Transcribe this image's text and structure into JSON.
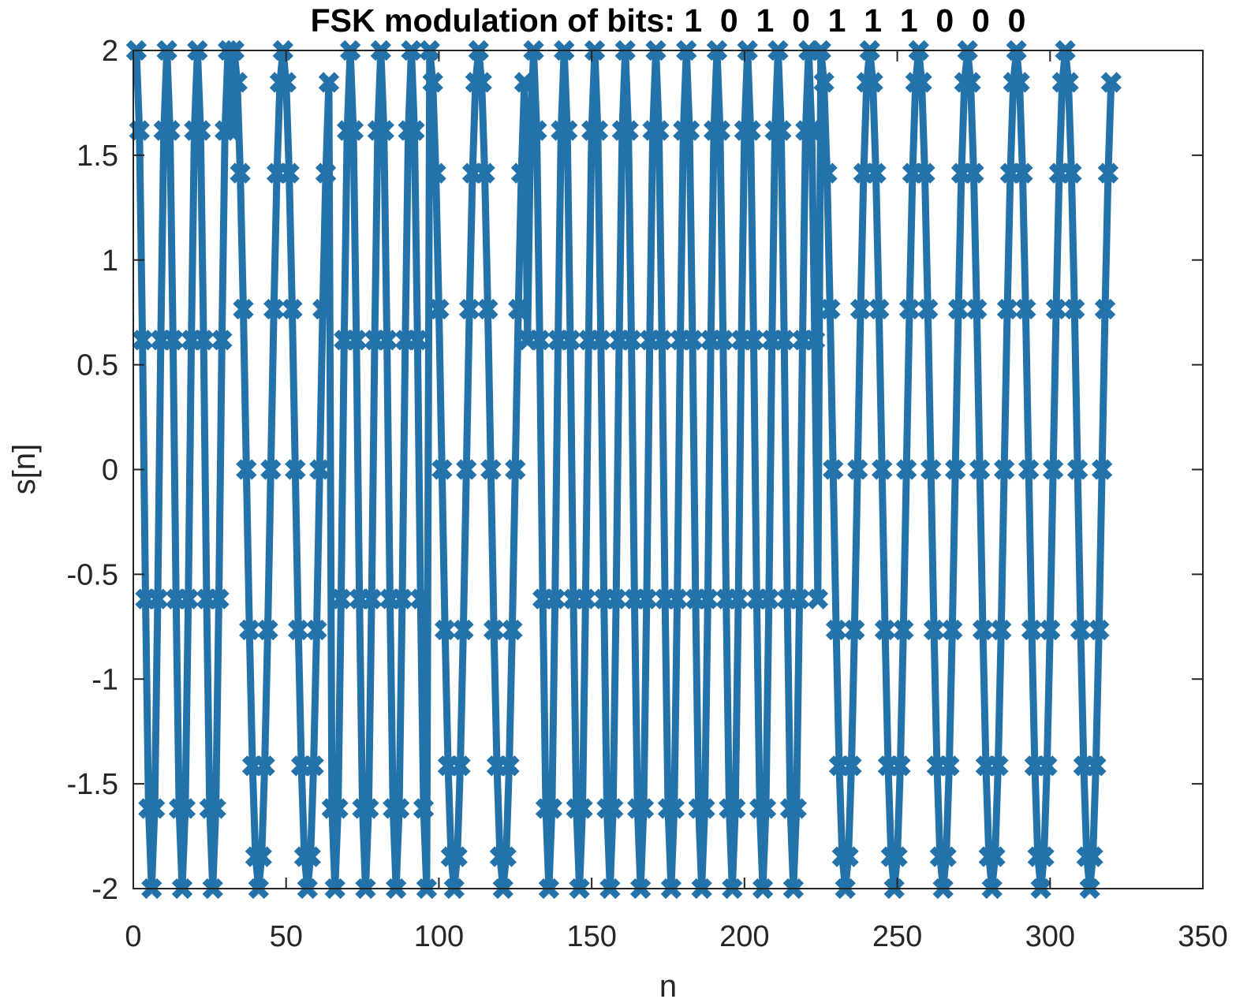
{
  "chart_data": {
    "type": "line",
    "title": "FSK modulation of bits: 1  0  1  0  1  1  1  0  0  0",
    "xlabel": "n",
    "ylabel": "s[n]",
    "xlim": [
      0,
      350
    ],
    "ylim": [
      -2,
      2
    ],
    "xticks": [
      0,
      50,
      100,
      150,
      200,
      250,
      300,
      350
    ],
    "yticks": [
      -2,
      -1.5,
      -1,
      -0.5,
      0,
      0.5,
      1,
      1.5,
      2
    ],
    "xtick_labels": [
      "0",
      "50",
      "100",
      "150",
      "200",
      "250",
      "300",
      "350"
    ],
    "ytick_labels": [
      "-2",
      "-1.5",
      "-1",
      "-0.5",
      "0",
      "0.5",
      "1",
      "1.5",
      "2"
    ],
    "grid": false,
    "marker": "x",
    "series_color": "#2372a9",
    "amplitude": 2,
    "bits": [
      1,
      0,
      1,
      0,
      1,
      1,
      1,
      0,
      0,
      0
    ],
    "samples_per_bit": 32,
    "samples_per_period_bit1": 10,
    "samples_per_period_bit0": 16,
    "series": [
      {
        "x_start": 1,
        "x_end": 320,
        "formula": "s[n] = 2*cos(2*pi*(n-1)/P); P = 10 for bit 1, P = 16 for bit 0; 32 samples per bit, phase continuous across samples"
      }
    ]
  }
}
